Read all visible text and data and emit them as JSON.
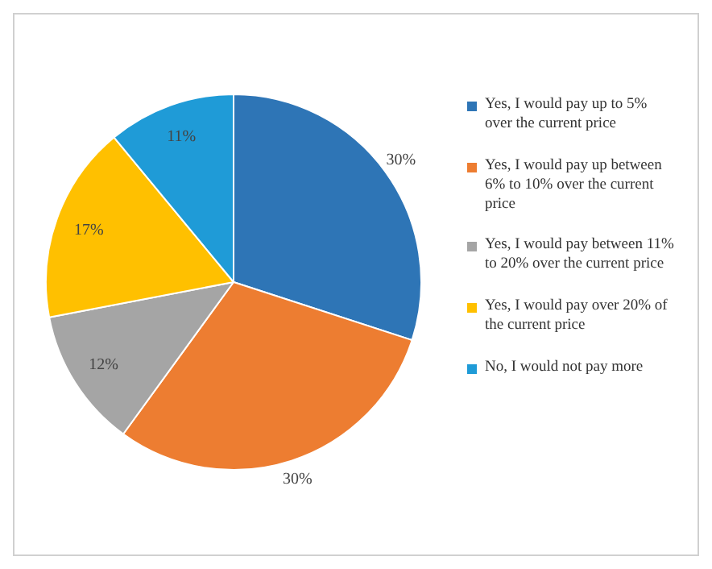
{
  "chart_data": {
    "type": "pie",
    "categories": [
      "Yes, I would pay up to 5% over the current price",
      "Yes, I would pay up between 6% to 10% over the current price",
      "Yes, I would pay between 11% to 20% over the current price",
      "Yes, I would pay over 20% of the current price",
      "No, I would not pay more"
    ],
    "values": [
      30,
      30,
      12,
      17,
      11
    ],
    "colors": [
      "#2e75b6",
      "#ed7d31",
      "#a5a5a5",
      "#ffc000",
      "#1f9bd7"
    ],
    "value_labels": [
      "30%",
      "30%",
      "12%",
      "17%",
      "11%"
    ],
    "legend": "right"
  }
}
